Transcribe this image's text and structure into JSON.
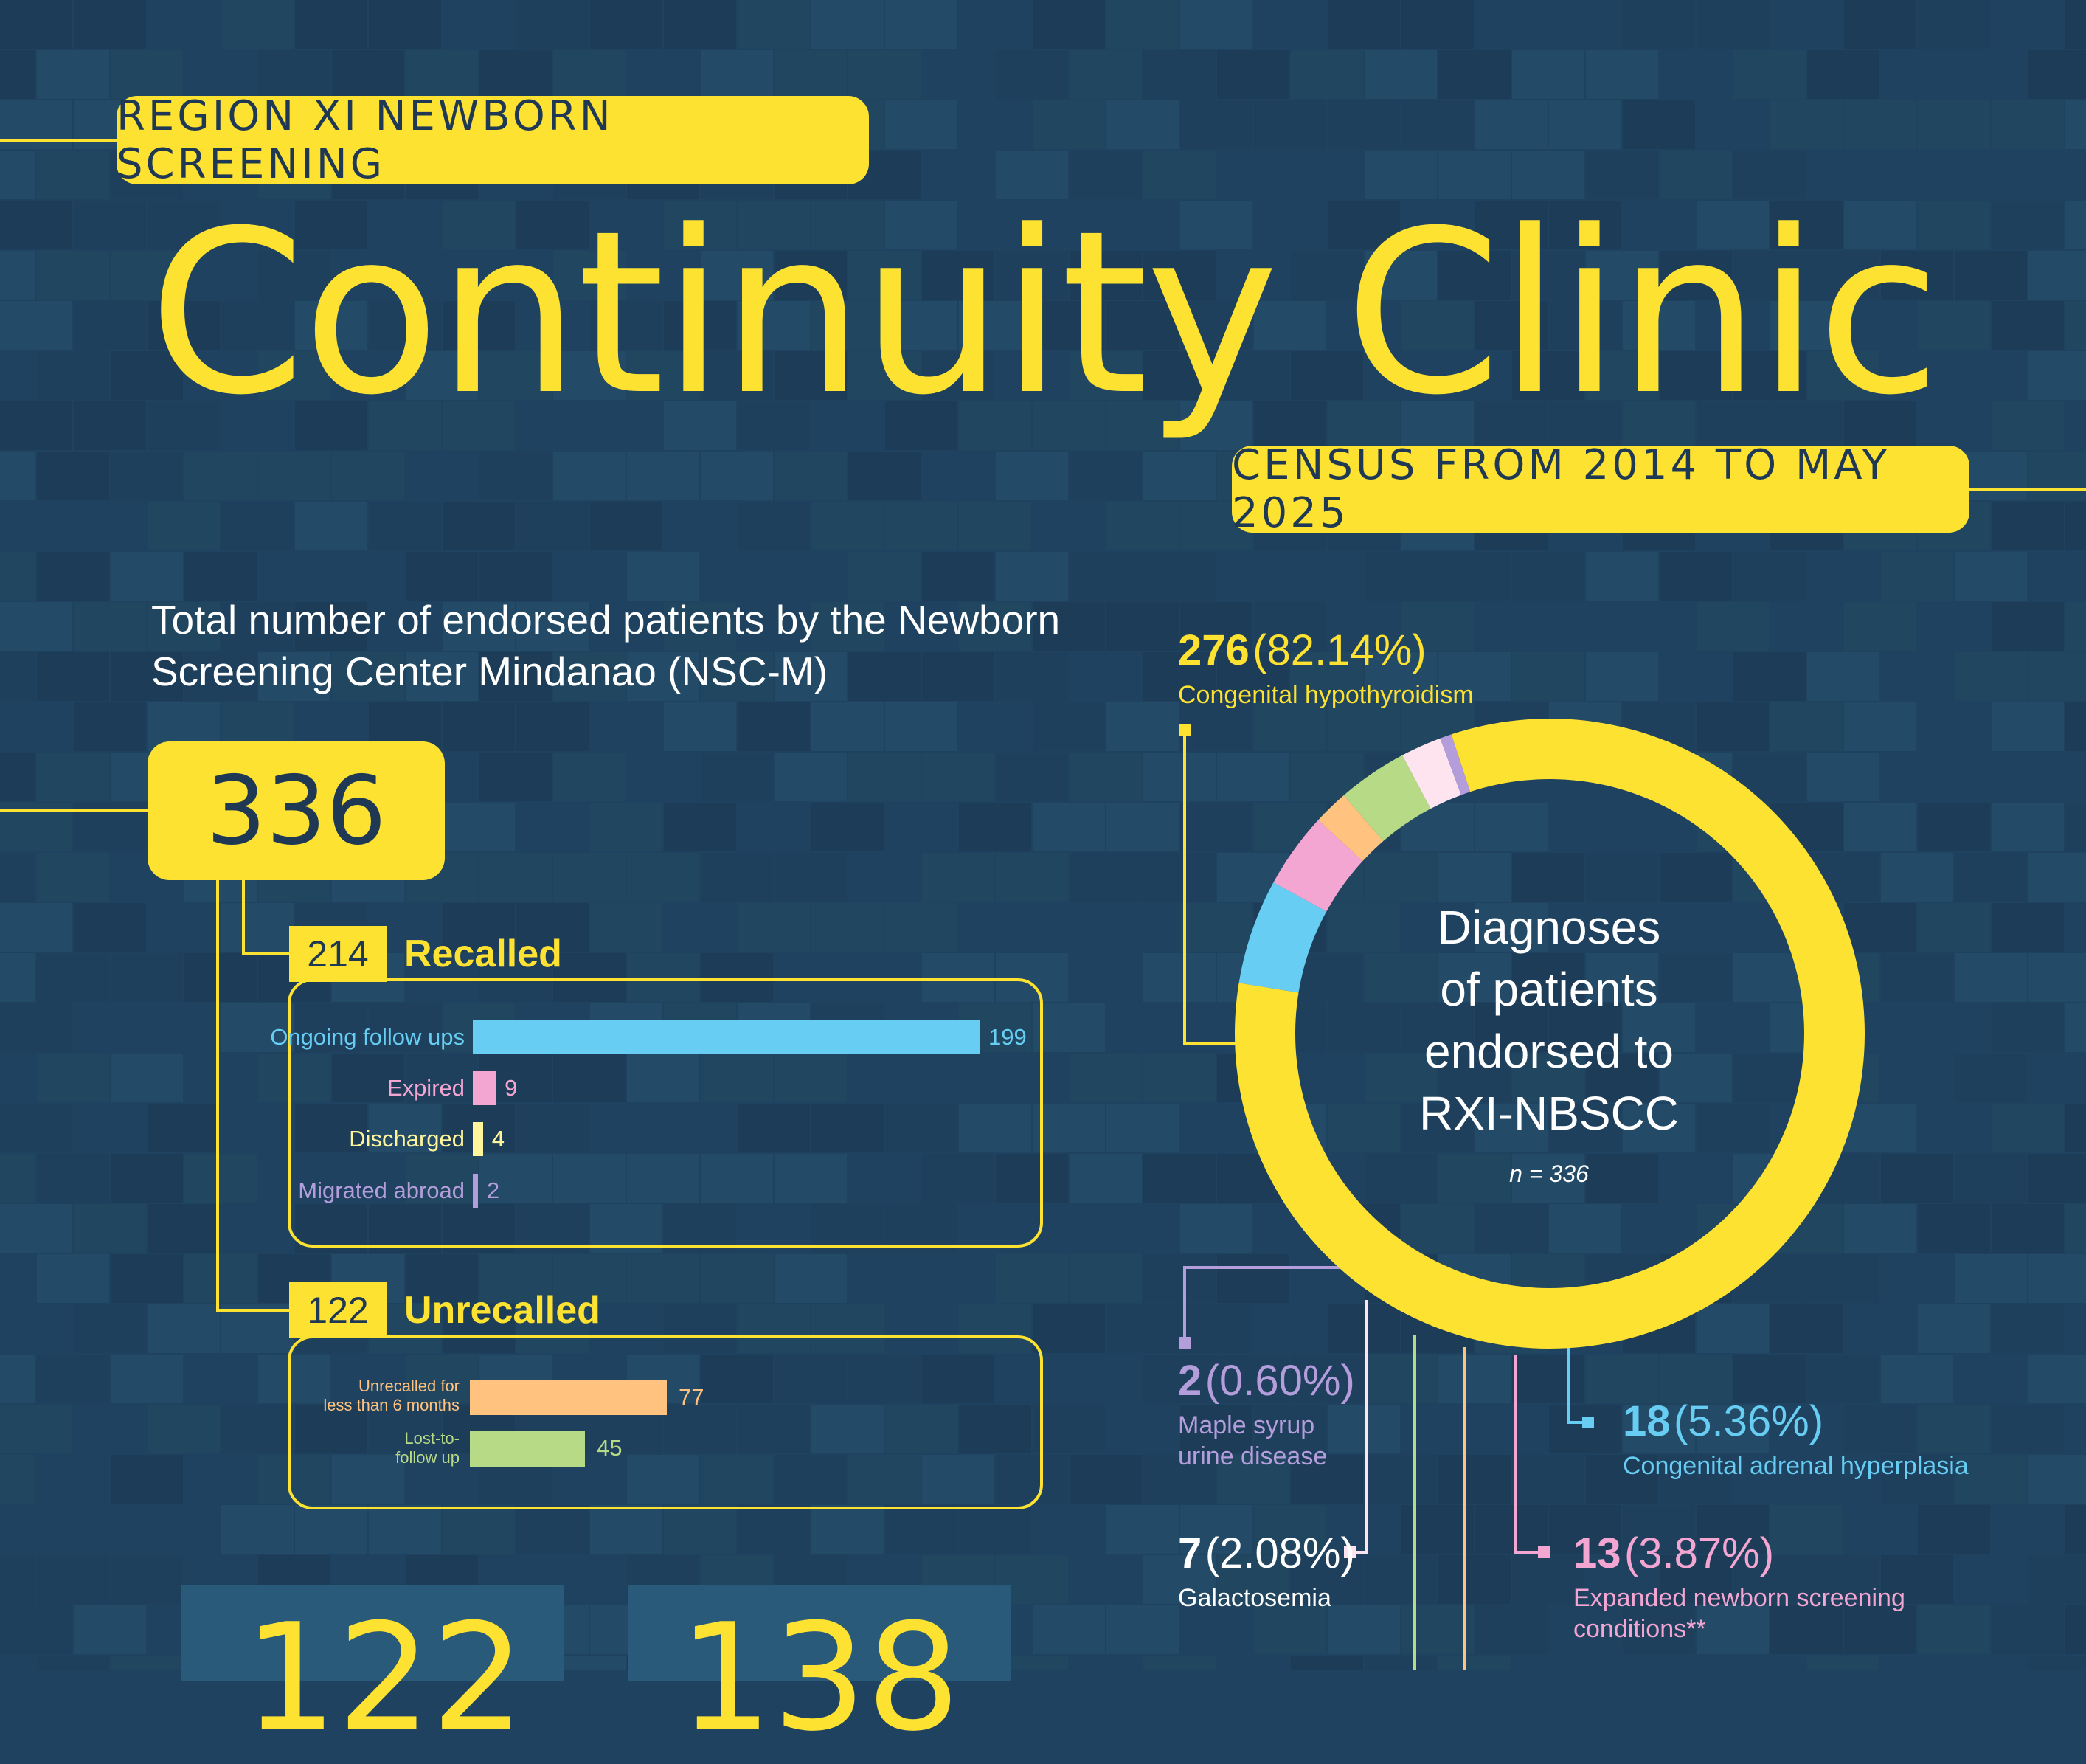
{
  "header": {
    "region_label": "REGION XI NEWBORN SCREENING",
    "title": "Continuity Clinic",
    "census_label": "CENSUS FROM 2014 TO MAY 2025"
  },
  "colors": {
    "background": "#1f4260",
    "accent_yellow": "#fde232",
    "dark_text": "#1f3954",
    "ongoing": "#67cdf3",
    "expired": "#f3a6d2",
    "discharged": "#fff59d",
    "migrated": "#b39ddb",
    "unrecalled_short": "#ffc37f",
    "lost": "#b7da86"
  },
  "endorsed": {
    "description": "Total number of endorsed patients by the Newborn Screening Center Mindanao (NSC-M)",
    "total": "336"
  },
  "recalled": {
    "count": "214",
    "label": "Recalled",
    "items": [
      {
        "label": "Ongoing follow ups",
        "value": "199"
      },
      {
        "label": "Expired",
        "value": "9"
      },
      {
        "label": "Discharged",
        "value": "4"
      },
      {
        "label": "Migrated abroad",
        "value": "2"
      }
    ]
  },
  "unrecalled": {
    "count": "122",
    "label": "Unrecalled",
    "items": [
      {
        "label_line1": "Unrecalled for",
        "label_line2": "less than 6 months",
        "value": "77"
      },
      {
        "label_line1": "Lost-to-",
        "label_line2": "follow up",
        "value": "45"
      }
    ]
  },
  "bottom_numbers": [
    "122",
    "138"
  ],
  "donut": {
    "center_line1": "Diagnoses",
    "center_line2": "of patients",
    "center_line3": "endorsed to",
    "center_line4": "RXI-NBSCC",
    "n_label": "n = 336"
  },
  "callouts": {
    "ch": {
      "num": "276",
      "pct": "(82.14%)",
      "desc": "Congenital hypothyroidism"
    },
    "msud": {
      "num": "2",
      "pct": "(0.60%)",
      "desc_line1": "Maple syrup",
      "desc_line2": "urine disease"
    },
    "cah": {
      "num": "18",
      "pct": "(5.36%)",
      "desc": "Congenital adrenal hyperplasia"
    },
    "gal": {
      "num": "7",
      "pct": "(2.08%)",
      "desc": "Galactosemia"
    },
    "enbs": {
      "num": "13",
      "pct": "(3.87%)",
      "desc_line1": "Expanded newborn screening",
      "desc_line2": "conditions**"
    }
  },
  "chart_data": [
    {
      "type": "bar",
      "title": "Recalled",
      "categories": [
        "Ongoing follow ups",
        "Expired",
        "Discharged",
        "Migrated abroad"
      ],
      "values": [
        199,
        9,
        4,
        2
      ]
    },
    {
      "type": "bar",
      "title": "Unrecalled",
      "categories": [
        "Unrecalled for less than 6 months",
        "Lost-to-follow up"
      ],
      "values": [
        77,
        45
      ]
    },
    {
      "type": "pie",
      "title": "Diagnoses of patients endorsed to RXI-NBSCC",
      "total": 336,
      "slices": [
        {
          "label": "Congenital hypothyroidism",
          "value": 276,
          "percent": 82.14,
          "color": "#fde232"
        },
        {
          "label": "Congenital adrenal hyperplasia",
          "value": 18,
          "percent": 5.36,
          "color": "#67cdf3"
        },
        {
          "label": "Expanded newborn screening conditions**",
          "value": 13,
          "percent": 3.87,
          "color": "#f3a6d2"
        },
        {
          "label": "",
          "value": 6,
          "percent": 1.79,
          "color": "#ffc37f"
        },
        {
          "label": "",
          "value": 12,
          "percent": 3.57,
          "color": "#b7da86"
        },
        {
          "label": "Galactosemia",
          "value": 7,
          "percent": 2.08,
          "color": "#fde4ef"
        },
        {
          "label": "Maple syrup urine disease",
          "value": 2,
          "percent": 0.6,
          "color": "#b39ddb"
        }
      ]
    }
  ]
}
